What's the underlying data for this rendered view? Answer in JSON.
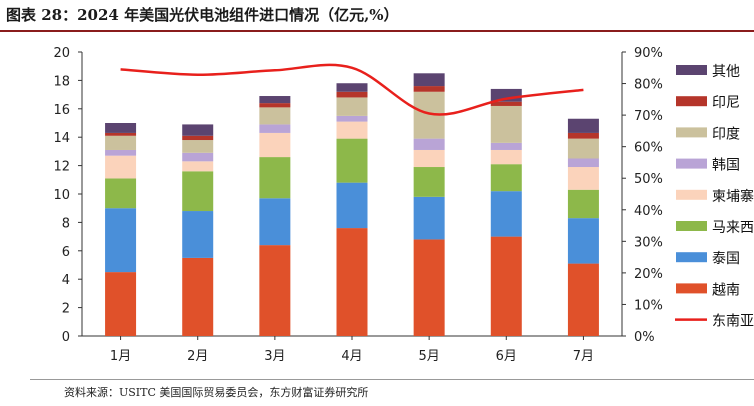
{
  "title": "图表 28：2024 年美国光伏电池组件进口情况（亿元,%）",
  "source": "资料来源：USITC 美国国际贸易委员会，东方财富证券研究所",
  "chart_data": {
    "type": "bar",
    "stacked": true,
    "categories": [
      "1月",
      "2月",
      "3月",
      "4月",
      "5月",
      "6月",
      "7月"
    ],
    "series": [
      {
        "name": "越南",
        "color": "#e0512a",
        "values": [
          4.5,
          5.5,
          6.4,
          7.6,
          6.8,
          7.0,
          5.1
        ]
      },
      {
        "name": "泰国",
        "color": "#4a8fd9",
        "values": [
          4.5,
          3.3,
          3.3,
          3.2,
          3.0,
          3.2,
          3.2
        ]
      },
      {
        "name": "马来西亚",
        "color": "#8db84a",
        "values": [
          2.1,
          2.8,
          2.9,
          3.1,
          2.1,
          1.9,
          2.0
        ]
      },
      {
        "name": "柬埔寨",
        "color": "#fbd3bb",
        "values": [
          1.6,
          0.7,
          1.7,
          1.2,
          1.2,
          1.0,
          1.6
        ]
      },
      {
        "name": "韩国",
        "color": "#b9a4d6",
        "values": [
          0.4,
          0.6,
          0.6,
          0.4,
          0.8,
          0.5,
          0.6
        ]
      },
      {
        "name": "印度",
        "color": "#cbc19d",
        "values": [
          1.0,
          0.9,
          1.2,
          1.3,
          3.3,
          2.6,
          1.4
        ]
      },
      {
        "name": "印尼",
        "color": "#b5352a",
        "values": [
          0.2,
          0.3,
          0.3,
          0.4,
          0.4,
          0.3,
          0.4
        ]
      },
      {
        "name": "其他",
        "color": "#5b4470",
        "values": [
          0.7,
          0.8,
          0.5,
          0.6,
          0.9,
          0.9,
          1.0
        ]
      }
    ],
    "line": {
      "name": "东南亚",
      "color": "#e8201c",
      "axis": "right",
      "values": [
        84.5,
        82.8,
        84.2,
        85.0,
        70.5,
        75.2,
        78.0
      ]
    },
    "ylim": [
      0,
      20
    ],
    "yticks": [
      0,
      2,
      4,
      6,
      8,
      10,
      12,
      14,
      16,
      18,
      20
    ],
    "y2lim": [
      0,
      90
    ],
    "y2ticks": [
      "0%",
      "10%",
      "20%",
      "30%",
      "40%",
      "50%",
      "60%",
      "70%",
      "80%",
      "90%"
    ],
    "legend_position": "right",
    "legend_order": [
      "其他",
      "印尼",
      "印度",
      "韩国",
      "柬埔寨",
      "马来西亚",
      "泰国",
      "越南",
      "东南亚"
    ]
  }
}
